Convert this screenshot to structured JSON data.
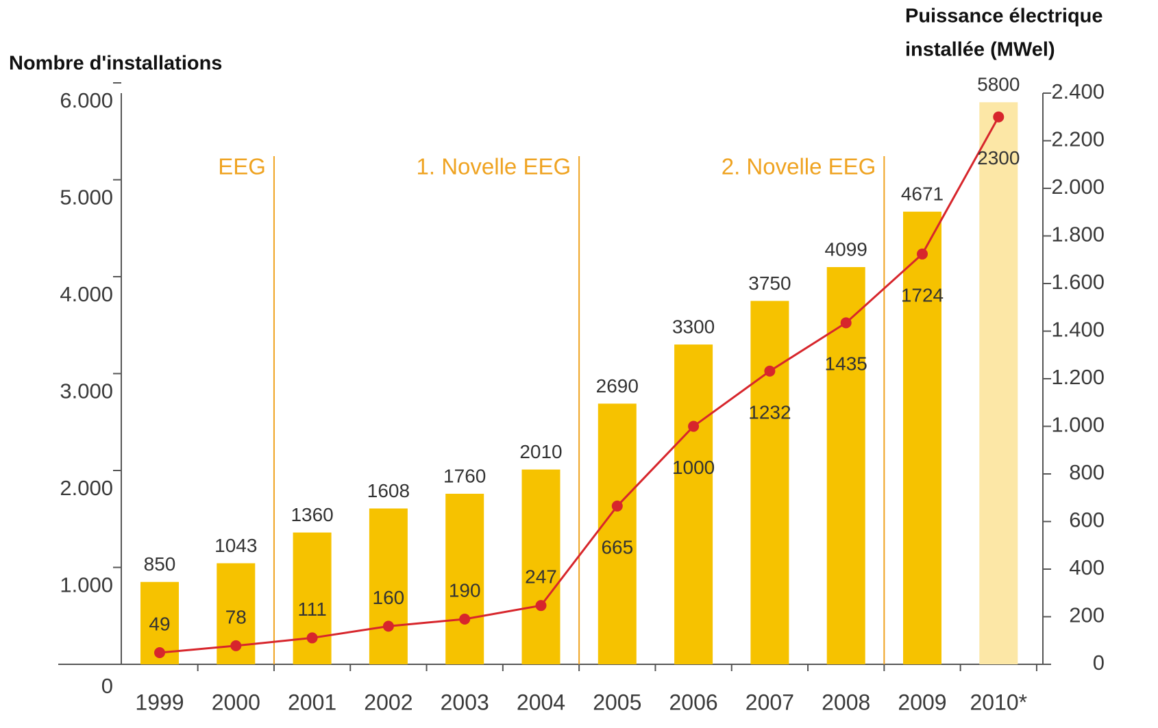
{
  "chart_data": {
    "type": "bar_line",
    "ylabel": "Nombre d'installations",
    "y2label": [
      "Puissance électrique",
      "installée (MWel)"
    ],
    "categories": [
      "1999",
      "2000",
      "2001",
      "2002",
      "2003",
      "2004",
      "2005",
      "2006",
      "2007",
      "2008",
      "2009",
      "2010*"
    ],
    "series": [
      {
        "type": "bar",
        "colors": [
          "#f6c200",
          "#f6c200",
          "#f6c200",
          "#f6c200",
          "#f6c200",
          "#f6c200",
          "#f6c200",
          "#f6c200",
          "#f6c200",
          "#f6c200",
          "#f6c200",
          "#fce7a6"
        ],
        "values": [
          850,
          1043,
          1360,
          1608,
          1760,
          2010,
          2690,
          3300,
          3750,
          4099,
          4671,
          5800
        ]
      },
      {
        "type": "line",
        "axis": "y2",
        "color": "#d7262c",
        "values": [
          49,
          78,
          111,
          160,
          190,
          247,
          665,
          1000,
          1232,
          1435,
          1724,
          2300
        ]
      }
    ],
    "annotations": [
      "EEG",
      "1. Novelle EEG",
      "2. Novelle EEG"
    ],
    "annotation_color": "#efa321",
    "ylim": [
      0,
      6000
    ],
    "yticks": [
      0,
      {
        "value": 1000,
        "label": "1.000"
      },
      {
        "value": 2000,
        "label": "2.000"
      },
      {
        "value": 3000,
        "label": "3.000"
      },
      {
        "value": 4000,
        "label": "4.000"
      },
      {
        "value": 5000,
        "label": "5.000"
      },
      {
        "value": 6000,
        "label": "6.000"
      }
    ],
    "y2lim": [
      0,
      2400
    ],
    "y2ticks": [
      0,
      200,
      400,
      600,
      800,
      {
        "value": 1000,
        "label": "1.000"
      },
      {
        "value": 1200,
        "label": "1.200"
      },
      {
        "value": 1400,
        "label": "1.400"
      },
      {
        "value": 1600,
        "label": "1.600"
      },
      {
        "value": 1800,
        "label": "1.800"
      },
      {
        "value": 2000,
        "label": "2.000"
      },
      {
        "value": 2200,
        "label": "2.200"
      },
      {
        "value": 2400,
        "label": "2.400"
      }
    ]
  }
}
